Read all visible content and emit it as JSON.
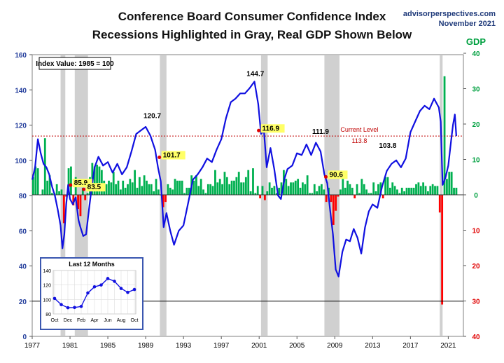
{
  "title": "Conference Board Consumer Confidence Index",
  "subtitle": "Recessions Highlighted in Gray, Real GDP Shown Below",
  "source": "advisorperspectives.com",
  "date": "November 2021",
  "colors": {
    "index_line": "#1010e0",
    "gdp_positive": "#00b050",
    "gdp_negative": "#ff0000",
    "recession": "#c8c8c8",
    "current_level": "#c00000",
    "left_axis": "#1f3a9a",
    "right_axis_pos": "#00a040",
    "right_axis_neg": "#e00000"
  },
  "chart_data": [
    {
      "type": "line",
      "title": "Conference Board Consumer Confidence Index",
      "annotation_box": "Index Value: 1985 = 100",
      "x_ticks": [
        "1977",
        "1981",
        "1985",
        "1989",
        "1993",
        "1997",
        "2001",
        "2005",
        "2009",
        "2013",
        "2017",
        "2021"
      ],
      "left_axis": {
        "ylim": [
          0,
          160
        ],
        "ticks": [
          "0",
          "20",
          "40",
          "60",
          "80",
          "100",
          "120",
          "140",
          "160"
        ]
      },
      "right_axis": {
        "label": "GDP",
        "ylim": [
          -40,
          40
        ],
        "ticks": [
          "40",
          "30",
          "20",
          "10",
          "0",
          "10",
          "20",
          "30",
          "40"
        ]
      },
      "recessions": [
        [
          1980.0,
          1980.5
        ],
        [
          1981.5,
          1982.9
        ],
        [
          1990.5,
          1991.2
        ],
        [
          2001.2,
          2001.9
        ],
        [
          2007.9,
          2009.5
        ],
        [
          2020.1,
          2020.4
        ]
      ],
      "series": [
        {
          "name": "Consumer Confidence Index",
          "x": [
            1977.0,
            1977.3,
            1977.6,
            1977.9,
            1978.2,
            1978.5,
            1978.8,
            1979.1,
            1979.4,
            1979.7,
            1980.0,
            1980.2,
            1980.4,
            1980.6,
            1980.8,
            1981.0,
            1981.3,
            1981.6,
            1981.9,
            1982.1,
            1982.4,
            1982.7,
            1983.0,
            1983.3,
            1983.6,
            1984.0,
            1984.5,
            1985.0,
            1985.5,
            1986.0,
            1986.5,
            1987.0,
            1987.5,
            1988.0,
            1988.5,
            1989.0,
            1989.5,
            1990.0,
            1990.3,
            1990.6,
            1990.9,
            1991.2,
            1991.6,
            1992.0,
            1992.5,
            1993.0,
            1993.5,
            1994.0,
            1994.5,
            1995.0,
            1995.5,
            1996.0,
            1996.5,
            1997.0,
            1997.5,
            1998.0,
            1998.5,
            1999.0,
            1999.5,
            2000.0,
            2000.5,
            2000.9,
            2001.2,
            2001.5,
            2001.8,
            2002.2,
            2002.6,
            2003.0,
            2003.3,
            2003.7,
            2004.0,
            2004.5,
            2005.0,
            2005.5,
            2006.0,
            2006.5,
            2007.0,
            2007.5,
            2007.9,
            2008.2,
            2008.5,
            2008.8,
            2009.1,
            2009.4,
            2009.8,
            2010.2,
            2010.6,
            2011.0,
            2011.4,
            2011.8,
            2012.2,
            2012.6,
            2013.0,
            2013.5,
            2014.0,
            2014.5,
            2015.0,
            2015.5,
            2016.0,
            2016.5,
            2017.0,
            2017.5,
            2018.0,
            2018.5,
            2019.0,
            2019.5,
            2020.0,
            2020.2,
            2020.4,
            2020.7,
            2021.0,
            2021.3,
            2021.5,
            2021.7,
            2021.85
          ],
          "values": [
            89,
            96,
            112,
            104,
            98,
            96,
            92,
            85,
            80,
            72,
            63,
            50,
            58,
            75,
            86,
            78,
            75,
            79,
            66,
            62,
            57,
            58,
            72,
            85,
            96,
            102,
            97,
            99,
            93,
            98,
            92,
            96,
            105,
            115,
            117,
            119,
            114,
            106,
            96,
            88,
            62,
            70,
            60,
            52,
            60,
            63,
            76,
            89,
            92,
            96,
            101,
            99,
            106,
            112,
            124,
            133,
            135,
            138,
            138,
            141,
            144.7,
            132,
            115,
            117,
            96,
            107,
            95,
            80,
            78,
            90,
            95,
            97,
            104,
            103,
            109,
            103,
            110,
            105,
            92,
            87,
            72,
            58,
            38,
            34,
            48,
            55,
            54,
            61,
            56,
            47,
            62,
            71,
            75,
            73,
            85,
            94,
            98,
            100,
            96,
            101,
            116,
            122,
            128,
            131,
            129,
            135,
            130,
            122,
            86,
            90,
            97,
            111,
            120,
            126,
            113.8
          ]
        },
        {
          "name": "Real GDP",
          "axis": "right",
          "x": [
            1977.0,
            1977.25,
            1977.5,
            1977.75,
            1978.0,
            1978.25,
            1978.5,
            1978.75,
            1979.0,
            1979.25,
            1979.5,
            1979.75,
            1980.0,
            1980.25,
            1980.5,
            1980.75,
            1981.0,
            1981.25,
            1981.5,
            1981.75,
            1982.0,
            1982.25,
            1982.5,
            1982.75,
            1983.0,
            1983.25,
            1983.5,
            1983.75,
            1984.0,
            1984.25,
            1984.5,
            1984.75,
            1985.0,
            1985.25,
            1985.5,
            1985.75,
            1986.0,
            1986.25,
            1986.5,
            1986.75,
            1987.0,
            1987.25,
            1987.5,
            1987.75,
            1988.0,
            1988.25,
            1988.5,
            1988.75,
            1989.0,
            1989.25,
            1989.5,
            1989.75,
            1990.0,
            1990.25,
            1990.5,
            1990.75,
            1991.0,
            1991.25,
            1991.5,
            1991.75,
            1992.0,
            1992.25,
            1992.5,
            1992.75,
            1993.0,
            1993.25,
            1993.5,
            1993.75,
            1994.0,
            1994.25,
            1994.5,
            1994.75,
            1995.0,
            1995.25,
            1995.5,
            1995.75,
            1996.0,
            1996.25,
            1996.5,
            1996.75,
            1997.0,
            1997.25,
            1997.5,
            1997.75,
            1998.0,
            1998.25,
            1998.5,
            1998.75,
            1999.0,
            1999.25,
            1999.5,
            1999.75,
            2000.0,
            2000.25,
            2000.5,
            2000.75,
            2001.0,
            2001.25,
            2001.5,
            2001.75,
            2002.0,
            2002.25,
            2002.5,
            2002.75,
            2003.0,
            2003.25,
            2003.5,
            2003.75,
            2004.0,
            2004.25,
            2004.5,
            2004.75,
            2005.0,
            2005.25,
            2005.5,
            2005.75,
            2006.0,
            2006.25,
            2006.5,
            2006.75,
            2007.0,
            2007.25,
            2007.5,
            2007.75,
            2008.0,
            2008.25,
            2008.5,
            2008.75,
            2009.0,
            2009.25,
            2009.5,
            2009.75,
            2010.0,
            2010.25,
            2010.5,
            2010.75,
            2011.0,
            2011.25,
            2011.5,
            2011.75,
            2012.0,
            2012.25,
            2012.5,
            2012.75,
            2013.0,
            2013.25,
            2013.5,
            2013.75,
            2014.0,
            2014.25,
            2014.5,
            2014.75,
            2015.0,
            2015.25,
            2015.5,
            2015.75,
            2016.0,
            2016.25,
            2016.5,
            2016.75,
            2017.0,
            2017.25,
            2017.5,
            2017.75,
            2018.0,
            2018.25,
            2018.5,
            2018.75,
            2019.0,
            2019.25,
            2019.5,
            2019.75,
            2020.0,
            2020.25,
            2020.5,
            2020.75,
            2021.0,
            2021.25,
            2021.5,
            2021.75
          ],
          "values": [
            5.0,
            8.0,
            7.5,
            0.0,
            1.5,
            16.0,
            4.0,
            5.5,
            0.5,
            0.5,
            3.0,
            1.0,
            1.5,
            -8.0,
            -0.5,
            7.5,
            8.0,
            -3.0,
            5.0,
            -4.0,
            -6.0,
            2.0,
            -1.5,
            0.5,
            5.0,
            9.0,
            8.0,
            8.5,
            8.0,
            7.0,
            4.0,
            3.0,
            4.0,
            3.5,
            6.5,
            3.0,
            4.0,
            1.5,
            4.0,
            2.0,
            3.0,
            4.5,
            3.5,
            7.0,
            2.0,
            5.0,
            2.5,
            5.5,
            4.0,
            3.0,
            3.0,
            1.0,
            4.5,
            1.5,
            0.0,
            -3.5,
            -2.0,
            3.0,
            2.0,
            1.5,
            4.5,
            4.0,
            4.0,
            4.0,
            0.5,
            2.0,
            2.0,
            5.5,
            4.0,
            5.5,
            2.5,
            4.5,
            1.5,
            0.5,
            3.0,
            3.0,
            2.5,
            7.0,
            3.5,
            4.5,
            3.0,
            6.5,
            5.0,
            3.0,
            4.0,
            4.0,
            5.0,
            6.5,
            3.5,
            3.5,
            5.0,
            7.0,
            1.0,
            7.5,
            0.5,
            2.5,
            -1.0,
            2.5,
            -1.5,
            1.0,
            3.5,
            2.0,
            2.5,
            0.5,
            2.0,
            3.5,
            7.0,
            4.5,
            2.5,
            3.5,
            3.5,
            4.0,
            4.5,
            2.0,
            3.5,
            3.0,
            5.5,
            0.5,
            0.5,
            3.0,
            1.0,
            2.5,
            3.0,
            1.5,
            -2.0,
            2.0,
            -2.0,
            -8.5,
            -4.5,
            -0.5,
            1.5,
            4.5,
            2.0,
            4.0,
            3.0,
            2.0,
            -1.0,
            3.0,
            0.5,
            4.5,
            3.0,
            1.5,
            0.5,
            0.5,
            3.5,
            1.0,
            3.0,
            3.5,
            -1.0,
            5.0,
            5.0,
            2.0,
            3.5,
            2.5,
            1.5,
            0.5,
            2.0,
            1.0,
            2.0,
            2.0,
            2.0,
            2.0,
            3.0,
            3.5,
            2.5,
            3.5,
            2.5,
            1.0,
            2.5,
            3.0,
            2.5,
            2.5,
            -5.0,
            -31.0,
            33.5,
            4.5,
            6.5,
            6.5,
            2.0,
            2.0
          ]
        }
      ],
      "labels": [
        {
          "text": "85.9",
          "x": 1981.2,
          "y": 85.9,
          "highlight": true
        },
        {
          "text": "83.5",
          "x": 1982.6,
          "y": 83.5,
          "highlight": true
        },
        {
          "text": "120.7",
          "x": 1989.7,
          "y": 120.7,
          "highlight": false
        },
        {
          "text": "101.7",
          "x": 1990.6,
          "y": 101.7,
          "highlight": true
        },
        {
          "text": "144.7",
          "x": 2000.6,
          "y": 144.7,
          "highlight": false
        },
        {
          "text": "116.9",
          "x": 2001.1,
          "y": 116.9,
          "highlight": true
        },
        {
          "text": "111.9",
          "x": 2007.5,
          "y": 111.9,
          "highlight": false
        },
        {
          "text": "90.6",
          "x": 2008.2,
          "y": 90.6,
          "highlight": true
        },
        {
          "text": "103.8",
          "x": 2014.6,
          "y": 103.8,
          "highlight": false
        }
      ],
      "current_level": {
        "label": "Current Level",
        "value_label": "113.8",
        "value": 113.8
      }
    },
    {
      "type": "line",
      "title": "Last 12 Months",
      "categories": [
        "Oct",
        "Nov",
        "Dec",
        "Jan",
        "Feb",
        "Mar",
        "Apr",
        "May",
        "Jun",
        "Jul",
        "Aug",
        "Sep",
        "Oct"
      ],
      "x_tick_labels": [
        "Oct",
        "Dec",
        "Feb",
        "Apr",
        "Jun",
        "Aug",
        "Oct"
      ],
      "y_ticks": [
        "80",
        "100",
        "120",
        "140"
      ],
      "ylim": [
        80,
        140
      ],
      "values": [
        101.4,
        92.9,
        88.6,
        88.9,
        90.4,
        109.0,
        117.5,
        120.0,
        128.9,
        125.1,
        115.2,
        109.8,
        113.8
      ]
    }
  ]
}
